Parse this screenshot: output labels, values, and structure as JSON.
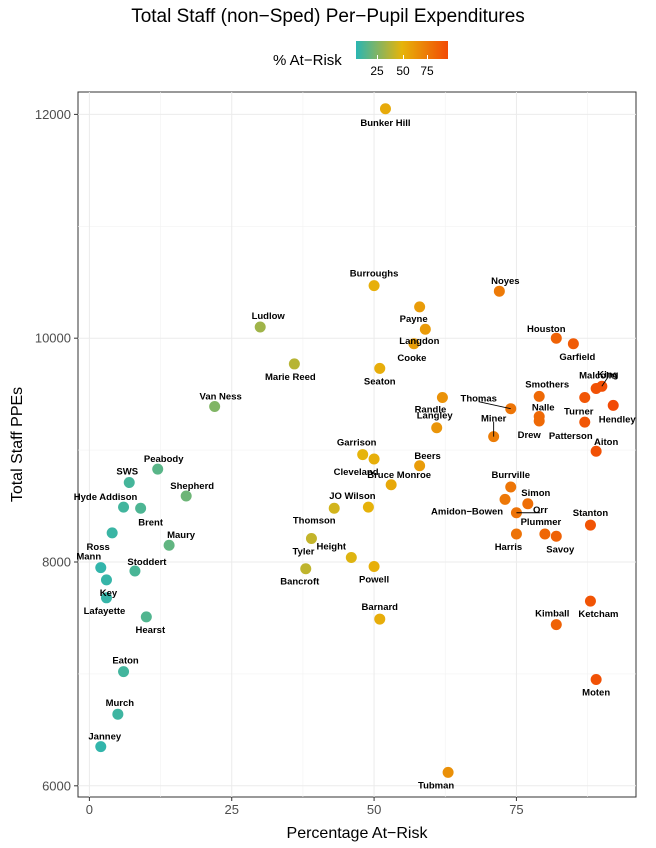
{
  "chart_data": {
    "type": "scatter",
    "title": "Total Staff (non−Sped) Per−Pupil Expenditures",
    "xlabel": "Percentage At−Risk",
    "ylabel": "Total Staff PPEs",
    "xlim": [
      -2,
      96
    ],
    "ylim": [
      5900,
      12200
    ],
    "x_ticks": [
      0,
      25,
      50,
      75
    ],
    "y_ticks": [
      6000,
      8000,
      10000,
      12000
    ],
    "x_tick_labels": [
      "0",
      "25",
      "50",
      "75"
    ],
    "y_tick_labels": [
      "6000",
      "8000",
      "10000",
      "12000"
    ],
    "grid": true,
    "legend": {
      "title": "% At−Risk",
      "placement": "top",
      "ticks": [
        "25",
        "50",
        "75"
      ],
      "colors": [
        "#2ab5b2",
        "#e6b40a",
        "#f24a05"
      ]
    },
    "points": [
      {
        "name": "Bunker Hill",
        "x": 52,
        "y": 12050
      },
      {
        "name": "Burroughs",
        "x": 50,
        "y": 10470
      },
      {
        "name": "Noyes",
        "x": 72,
        "y": 10420
      },
      {
        "name": "Payne",
        "x": 58,
        "y": 10280
      },
      {
        "name": "Ludlow",
        "x": 30,
        "y": 10100
      },
      {
        "name": "Langdon",
        "x": 59,
        "y": 10080
      },
      {
        "name": "Houston",
        "x": 82,
        "y": 10000
      },
      {
        "name": "Garfield",
        "x": 85,
        "y": 9950
      },
      {
        "name": "Cooke",
        "x": 57,
        "y": 9950
      },
      {
        "name": "Marie Reed",
        "x": 36,
        "y": 9770
      },
      {
        "name": "Seaton",
        "x": 51,
        "y": 9730
      },
      {
        "name": "King",
        "x": 90,
        "y": 9570
      },
      {
        "name": "Malcolm",
        "x": 89,
        "y": 9550
      },
      {
        "name": "Smothers",
        "x": 79,
        "y": 9480
      },
      {
        "name": "Randle",
        "x": 62,
        "y": 9470
      },
      {
        "name": "Turner",
        "x": 87,
        "y": 9470
      },
      {
        "name": "Van Ness",
        "x": 22,
        "y": 9390
      },
      {
        "name": "Hendley",
        "x": 92,
        "y": 9400
      },
      {
        "name": "Thomas",
        "x": 74,
        "y": 9370
      },
      {
        "name": "Nalle",
        "x": 79,
        "y": 9300
      },
      {
        "name": "Drew",
        "x": 79,
        "y": 9260
      },
      {
        "name": "Patterson",
        "x": 87,
        "y": 9250
      },
      {
        "name": "Langley",
        "x": 61,
        "y": 9200
      },
      {
        "name": "Miner",
        "x": 71,
        "y": 9120
      },
      {
        "name": "Aiton",
        "x": 89,
        "y": 8990
      },
      {
        "name": "Garrison",
        "x": 48,
        "y": 8960
      },
      {
        "name": "Cleveland",
        "x": 50,
        "y": 8920
      },
      {
        "name": "Beers",
        "x": 58,
        "y": 8860
      },
      {
        "name": "Peabody",
        "x": 12,
        "y": 8830
      },
      {
        "name": "SWS",
        "x": 7,
        "y": 8710
      },
      {
        "name": "Bruce Monroe",
        "x": 53,
        "y": 8690
      },
      {
        "name": "Burrville",
        "x": 74,
        "y": 8670
      },
      {
        "name": "Shepherd",
        "x": 17,
        "y": 8590
      },
      {
        "name": "Simon",
        "x": 77,
        "y": 8520
      },
      {
        "name": "Amidon−Bowen",
        "x": 73,
        "y": 8560
      },
      {
        "name": "Orr",
        "x": 75,
        "y": 8440
      },
      {
        "name": "Hyde Addison",
        "x": 6,
        "y": 8490
      },
      {
        "name": "Brent",
        "x": 9,
        "y": 8480
      },
      {
        "name": "JO Wilson",
        "x": 49,
        "y": 8490
      },
      {
        "name": "Thomson",
        "x": 43,
        "y": 8480
      },
      {
        "name": "Stanton",
        "x": 88,
        "y": 8330
      },
      {
        "name": "Ross",
        "x": 4,
        "y": 8260
      },
      {
        "name": "Plummer",
        "x": 80,
        "y": 8250
      },
      {
        "name": "Harris",
        "x": 75,
        "y": 8250
      },
      {
        "name": "Savoy",
        "x": 82,
        "y": 8230
      },
      {
        "name": "Tyler",
        "x": 39,
        "y": 8210
      },
      {
        "name": "Maury",
        "x": 14,
        "y": 8150
      },
      {
        "name": "Height",
        "x": 46,
        "y": 8040
      },
      {
        "name": "Mann",
        "x": 2,
        "y": 7950
      },
      {
        "name": "Bancroft",
        "x": 38,
        "y": 7940
      },
      {
        "name": "Powell",
        "x": 50,
        "y": 7960
      },
      {
        "name": "Stoddert",
        "x": 8,
        "y": 7920
      },
      {
        "name": "Key",
        "x": 3,
        "y": 7840
      },
      {
        "name": "Lafayette",
        "x": 3,
        "y": 7680
      },
      {
        "name": "Ketcham",
        "x": 88,
        "y": 7650
      },
      {
        "name": "Hearst",
        "x": 10,
        "y": 7510
      },
      {
        "name": "Barnard",
        "x": 51,
        "y": 7490
      },
      {
        "name": "Kimball",
        "x": 82,
        "y": 7440
      },
      {
        "name": "Eaton",
        "x": 6,
        "y": 7020
      },
      {
        "name": "Moten",
        "x": 89,
        "y": 6950
      },
      {
        "name": "Murch",
        "x": 5,
        "y": 6640
      },
      {
        "name": "Janney",
        "x": 2,
        "y": 6350
      },
      {
        "name": "Tubman",
        "x": 63,
        "y": 6120
      }
    ]
  }
}
